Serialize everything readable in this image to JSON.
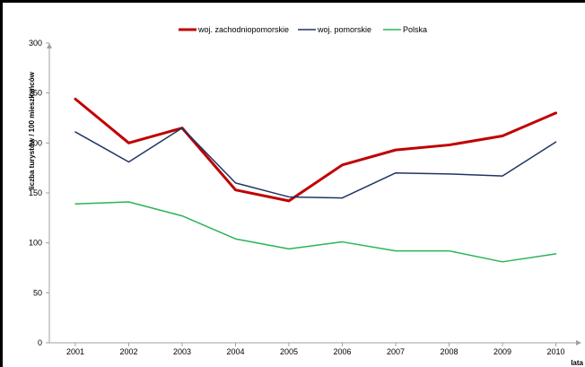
{
  "chart_data": {
    "type": "line",
    "title": "",
    "xlabel": "lata",
    "ylabel": "liczba turystów / 100 mieszkańców",
    "x": [
      "2001",
      "2002",
      "2003",
      "2004",
      "2005",
      "2006",
      "2007",
      "2008",
      "2009",
      "2010"
    ],
    "ylim": [
      0,
      300
    ],
    "yticks": [
      "0",
      "50",
      "100",
      "150",
      "200",
      "250",
      "300"
    ],
    "grid": false,
    "legend_position": "top",
    "series": [
      {
        "name": "woj. zachodniopomorskie",
        "color": "#c00000",
        "values": [
          244,
          200,
          215,
          153,
          142,
          178,
          193,
          198,
          207,
          230
        ]
      },
      {
        "name": "woj. pomorskie",
        "color": "#1f3564",
        "values": [
          211,
          181,
          215,
          160,
          146,
          145,
          170,
          169,
          167,
          201
        ]
      },
      {
        "name": "Polska",
        "color": "#2bb35a",
        "values": [
          139,
          141,
          127,
          104,
          94,
          101,
          92,
          92,
          81,
          89
        ]
      }
    ]
  }
}
